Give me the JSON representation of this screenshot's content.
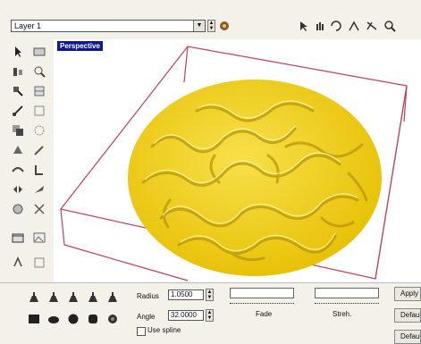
{
  "top": {
    "layer_value": "Layer 1",
    "layer_icon": "layer-settings-icon",
    "nav_icons": [
      "arrow-cursor-icon",
      "hand-pan-icon",
      "rotate-view-icon",
      "zoom-in-icon",
      "zoom-out-icon",
      "zoom-fit-icon"
    ]
  },
  "viewport": {
    "label": "Perspective",
    "surface_color": "#f2d40e",
    "bbox_color": "#c0405a"
  },
  "tools": {
    "left_column": [
      "select-arrow-icon",
      "move-icon",
      "scale-icon",
      "transform-icon",
      "copy-icon",
      "sculpt-icon",
      "smooth-icon",
      "mirror-icon",
      "paint-icon",
      "erase-icon",
      "grid-icon",
      "light-icon"
    ],
    "right_column": [
      "view-icon",
      "zoom-icon",
      "layers-icon",
      "frame-icon",
      "outline-icon",
      "pen-icon",
      "measure-icon",
      "knife-icon",
      "cut-icon",
      "image-icon",
      "settings-icon",
      "box-icon"
    ]
  },
  "bottom": {
    "brush_row1": [
      "flat-brush-icon",
      "round-brush-icon",
      "smooth-brush-icon",
      "spike-brush-icon",
      "stamp-brush-icon"
    ],
    "brush_row2": [
      "cube-brush-icon",
      "layer-brush-icon",
      "sphere-brush-icon",
      "cylinder-brush-icon",
      "cone-brush-icon"
    ],
    "radius_label": "Radius",
    "radius_value": "1.0500",
    "angle_label": "Angle",
    "angle_value": "32.0000",
    "spline_label": "Use spline",
    "fade_label": "Fade",
    "strength_label": "Streh.",
    "btn1": "Apply",
    "btn2": "Default",
    "btn3": "Default"
  }
}
